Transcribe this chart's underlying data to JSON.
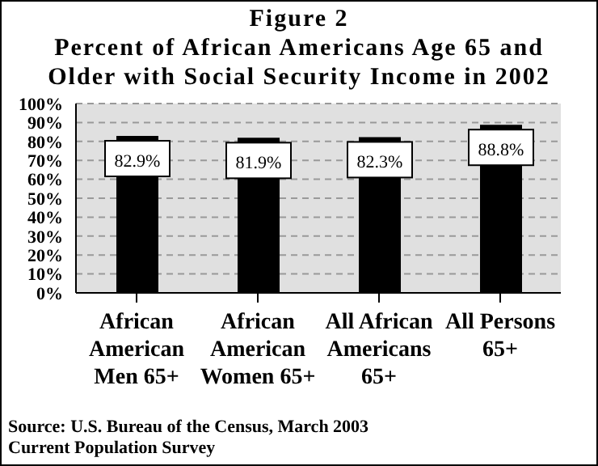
{
  "chart_data": {
    "type": "bar",
    "title": "Figure 2",
    "subtitle": "Percent of African Americans Age 65 and Older with Social Security Income in 2002",
    "categories": [
      "African American Men 65+",
      "African American Women 65+",
      "All African Americans 65+",
      "All Persons 65+"
    ],
    "values": [
      82.9,
      81.9,
      82.3,
      88.8
    ],
    "color": "#000000",
    "value_labels": [
      "82.9%",
      "81.9%",
      "82.3%",
      "88.8%"
    ],
    "ylim": [
      0,
      100
    ],
    "yticks": [
      {
        "value": 0,
        "label": "0%"
      },
      {
        "value": 10,
        "label": "10%"
      },
      {
        "value": 20,
        "label": "20%"
      },
      {
        "value": 30,
        "label": "30%"
      },
      {
        "value": 40,
        "label": "40%"
      },
      {
        "value": 50,
        "label": "50%"
      },
      {
        "value": 60,
        "label": "60%"
      },
      {
        "value": 70,
        "label": "70%"
      },
      {
        "value": 80,
        "label": "80%"
      },
      {
        "value": 90,
        "label": "90%"
      },
      {
        "value": 100,
        "label": "100%"
      }
    ],
    "grid": "y",
    "annotations": [
      "Source: U.S. Bureau of the Census, March 2003 Current Population Survey"
    ]
  }
}
